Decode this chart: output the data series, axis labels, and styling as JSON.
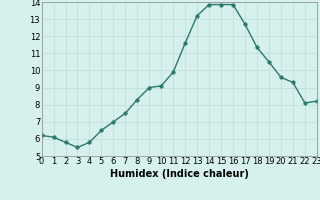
{
  "x": [
    0,
    1,
    2,
    3,
    4,
    5,
    6,
    7,
    8,
    9,
    10,
    11,
    12,
    13,
    14,
    15,
    16,
    17,
    18,
    19,
    20,
    21,
    22,
    23
  ],
  "y": [
    6.2,
    6.1,
    5.8,
    5.5,
    5.8,
    6.5,
    7.0,
    7.5,
    8.3,
    9.0,
    9.1,
    9.9,
    11.6,
    13.2,
    13.85,
    13.85,
    13.85,
    12.7,
    11.35,
    10.5,
    9.6,
    9.3,
    8.1,
    8.2
  ],
  "line_color": "#2a7a6e",
  "marker_color": "#2a7a6e",
  "bg_color": "#d6f0ee",
  "grid_color": "#c4dede",
  "xlabel": "Humidex (Indice chaleur)",
  "xlim": [
    0,
    23
  ],
  "ylim": [
    5,
    14
  ],
  "xticks": [
    0,
    1,
    2,
    3,
    4,
    5,
    6,
    7,
    8,
    9,
    10,
    11,
    12,
    13,
    14,
    15,
    16,
    17,
    18,
    19,
    20,
    21,
    22,
    23
  ],
  "yticks": [
    5,
    6,
    7,
    8,
    9,
    10,
    11,
    12,
    13,
    14
  ],
  "xlabel_fontsize": 7,
  "tick_fontsize": 6,
  "marker_size": 2.5,
  "line_width": 1.0
}
